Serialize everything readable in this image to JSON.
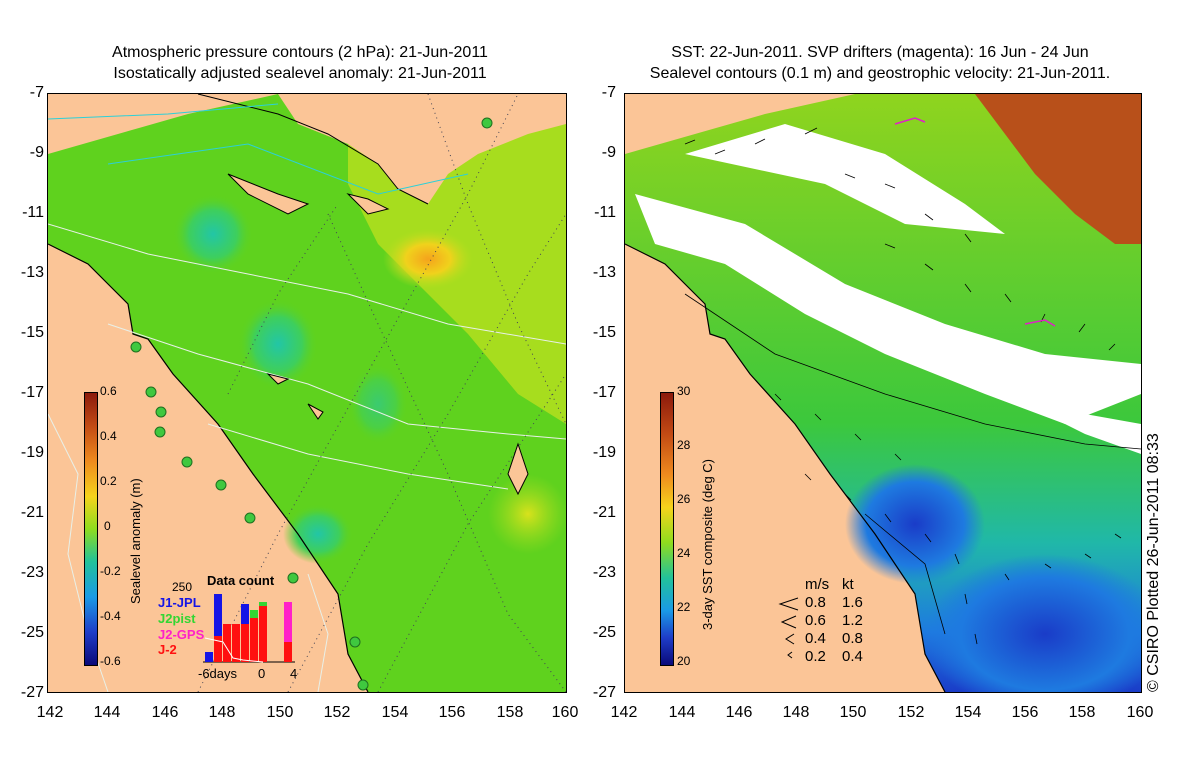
{
  "left_panel": {
    "title_line1": "Atmospheric pressure contours (2 hPa): 21-Jun-2011",
    "title_line2": "Isostatically adjusted sealevel anomaly: 21-Jun-2011",
    "colorbar_label": "Sealevel anomaly (m)",
    "colorbar_ticks": [
      "0.6",
      "0.4",
      "0.2",
      "0",
      "-0.2",
      "-0.4",
      "-0.6"
    ],
    "data_count": {
      "title": "Data count",
      "scale_value": "250",
      "missions": [
        {
          "name": "J1-JPL",
          "color": "#1515e6"
        },
        {
          "name": "J2pist",
          "color": "#33d633"
        },
        {
          "name": "J2-GPS",
          "color": "#ff21c8"
        },
        {
          "name": "J-2",
          "color": "#ff1010"
        }
      ],
      "x_labels": [
        "-6days",
        "0",
        "4"
      ]
    }
  },
  "right_panel": {
    "title_line1": "SST: 22-Jun-2011. SVP drifters (magenta): 16 Jun - 24 Jun",
    "title_line2": "Sealevel contours (0.1 m) and geostrophic velocity: 21-Jun-2011.",
    "colorbar_label": "3-day SST composite (deg C)",
    "colorbar_ticks": [
      "30",
      "28",
      "26",
      "24",
      "22",
      "20"
    ],
    "velocity_legend": {
      "header_ms": "m/s",
      "header_kt": "kt",
      "rows": [
        {
          "ms": "0.8",
          "kt": "1.6"
        },
        {
          "ms": "0.6",
          "kt": "1.2"
        },
        {
          "ms": "0.4",
          "kt": "0.8"
        },
        {
          "ms": "0.2",
          "kt": "0.4"
        }
      ]
    },
    "copyright": "© CSIRO Plotted 26-Jun-2011 08:33"
  },
  "axes": {
    "y_ticks": [
      "-7",
      "-9",
      "-11",
      "-13",
      "-15",
      "-17",
      "-19",
      "-21",
      "-23",
      "-25",
      "-27"
    ],
    "x_ticks": [
      "142",
      "144",
      "146",
      "148",
      "150",
      "152",
      "154",
      "156",
      "158",
      "160"
    ]
  },
  "colors": {
    "land": "#fbc597",
    "ocean_green": "#5fd21e",
    "cloud": "#ffffff"
  }
}
